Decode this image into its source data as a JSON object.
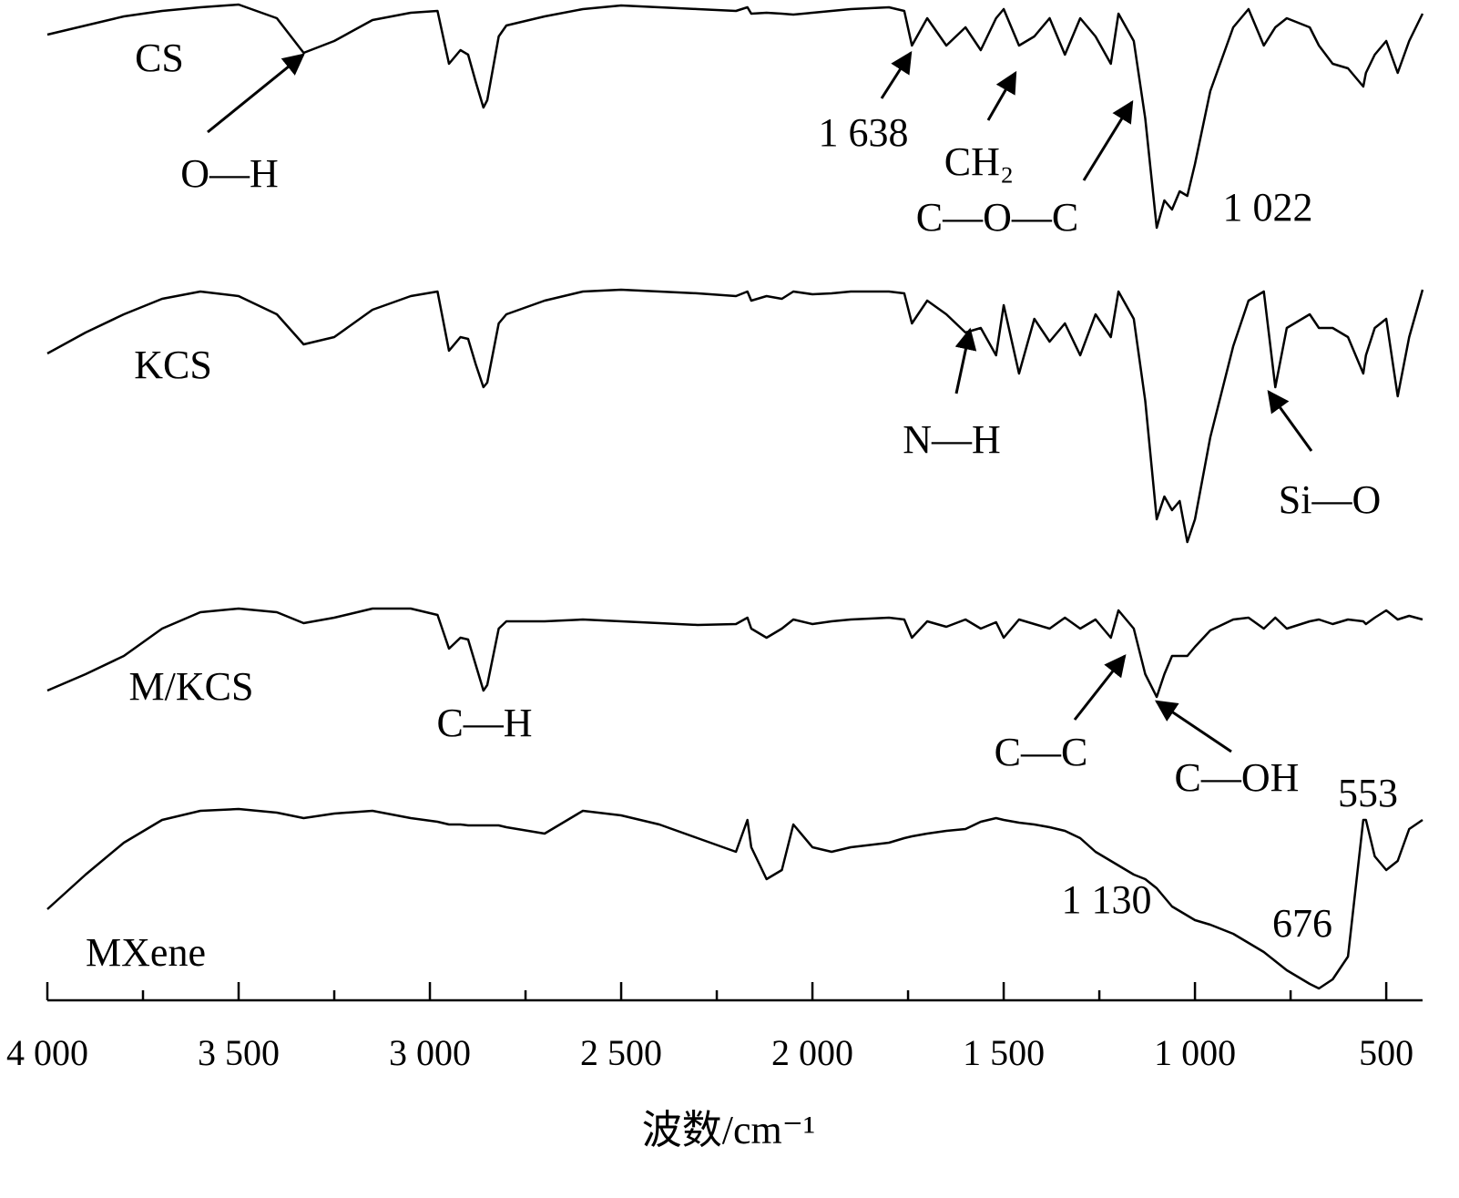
{
  "chart_data": {
    "type": "line",
    "x_label": "波数/cm⁻¹",
    "xlim": [
      4000,
      405
    ],
    "ylim": [
      0,
      1100
    ],
    "xticks": [
      {
        "value": 4000,
        "label": "4 000"
      },
      {
        "value": 3500,
        "label": "3 500"
      },
      {
        "value": 3000,
        "label": "3 000"
      },
      {
        "value": 2500,
        "label": "2 500"
      },
      {
        "value": 2000,
        "label": "2 000"
      },
      {
        "value": 1500,
        "label": "1 500"
      },
      {
        "value": 1000,
        "label": "1 000"
      },
      500
    ],
    "xminor_ticks": [
      3750,
      3250,
      2750,
      2250,
      1750,
      1250,
      750
    ],
    "x": [
      4000,
      3900,
      3800,
      3700,
      3600,
      3500,
      3400,
      3330,
      3250,
      3150,
      3050,
      2980,
      2950,
      2920,
      2900,
      2880,
      2860,
      2850,
      2820,
      2800,
      2700,
      2600,
      2500,
      2400,
      2300,
      2200,
      2170,
      2160,
      2120,
      2080,
      2050,
      2000,
      1950,
      1900,
      1800,
      1760,
      1740,
      1700,
      1650,
      1600,
      1560,
      1520,
      1500,
      1460,
      1420,
      1380,
      1340,
      1300,
      1260,
      1220,
      1200,
      1160,
      1130,
      1100,
      1080,
      1060,
      1040,
      1020,
      1000,
      960,
      900,
      860,
      820,
      790,
      760,
      700,
      676,
      640,
      600,
      560,
      553,
      530,
      500,
      470,
      440,
      405
    ],
    "series": [
      {
        "name": "CS",
        "color": "#000000",
        "values": [
          1062,
          1072,
          1082,
          1088,
          1092,
          1095,
          1080,
          1042,
          1055,
          1078,
          1086,
          1088,
          1030,
          1045,
          1040,
          1010,
          982,
          990,
          1060,
          1072,
          1082,
          1090,
          1094,
          1092,
          1090,
          1088,
          1092,
          1085,
          1086,
          1085,
          1084,
          1086,
          1088,
          1090,
          1092,
          1088,
          1050,
          1080,
          1050,
          1070,
          1045,
          1080,
          1090,
          1050,
          1060,
          1080,
          1040,
          1080,
          1060,
          1030,
          1085,
          1055,
          970,
          850,
          880,
          870,
          890,
          885,
          920,
          1000,
          1070,
          1090,
          1050,
          1070,
          1080,
          1070,
          1050,
          1030,
          1025,
          1005,
          1020,
          1040,
          1055,
          1020,
          1055,
          1085
        ]
      },
      {
        "name": "KCS",
        "color": "#000000",
        "values": [
          712,
          735,
          755,
          772,
          780,
          775,
          755,
          722,
          730,
          760,
          775,
          780,
          715,
          730,
          728,
          700,
          675,
          680,
          745,
          755,
          770,
          780,
          782,
          780,
          778,
          775,
          780,
          770,
          775,
          772,
          780,
          777,
          778,
          780,
          780,
          778,
          745,
          770,
          755,
          735,
          740,
          710,
          765,
          690,
          750,
          725,
          745,
          710,
          755,
          730,
          780,
          750,
          660,
          530,
          555,
          540,
          550,
          505,
          530,
          620,
          720,
          770,
          780,
          675,
          740,
          755,
          740,
          740,
          730,
          690,
          710,
          740,
          750,
          665,
          730,
          782
        ]
      },
      {
        "name": "M/KCS",
        "color": "#000000",
        "values": [
          342,
          360,
          380,
          410,
          428,
          432,
          428,
          416,
          422,
          432,
          432,
          425,
          388,
          400,
          398,
          370,
          342,
          348,
          410,
          418,
          418,
          420,
          418,
          416,
          414,
          415,
          422,
          410,
          400,
          410,
          420,
          415,
          418,
          420,
          422,
          420,
          400,
          418,
          412,
          420,
          410,
          417,
          400,
          420,
          415,
          410,
          422,
          410,
          420,
          400,
          430,
          410,
          360,
          335,
          360,
          380,
          380,
          380,
          390,
          408,
          420,
          422,
          410,
          422,
          410,
          418,
          420,
          415,
          420,
          418,
          415,
          422,
          430,
          420,
          424,
          420
        ]
      },
      {
        "name": "MXene",
        "color": "#000000",
        "values": [
          102,
          140,
          175,
          200,
          210,
          212,
          208,
          202,
          207,
          210,
          202,
          198,
          195,
          195,
          194,
          194,
          194,
          194,
          194,
          192,
          185,
          210,
          205,
          195,
          180,
          165,
          200,
          170,
          135,
          145,
          195,
          170,
          165,
          170,
          175,
          180,
          182,
          185,
          188,
          190,
          198,
          202,
          200,
          197,
          195,
          192,
          188,
          180,
          165,
          155,
          150,
          140,
          135,
          125,
          115,
          105,
          100,
          95,
          90,
          85,
          75,
          65,
          55,
          45,
          35,
          20,
          15,
          25,
          50,
          200,
          200,
          160,
          145,
          155,
          190,
          200
        ]
      }
    ],
    "annotations": [
      "O—H",
      "1 638",
      "CH₂",
      "C—O—C",
      "1 022",
      "N—H",
      "Si—O",
      "C—H",
      "C—C",
      "C—OH",
      "553",
      "1 130",
      "676"
    ]
  }
}
